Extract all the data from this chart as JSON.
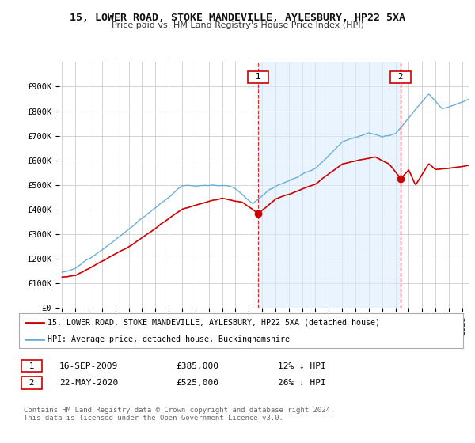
{
  "title": "15, LOWER ROAD, STOKE MANDEVILLE, AYLESBURY, HP22 5XA",
  "subtitle": "Price paid vs. HM Land Registry's House Price Index (HPI)",
  "background_color": "#ffffff",
  "plot_background": "#ffffff",
  "grid_color": "#cccccc",
  "hpi_color": "#6aafd6",
  "hpi_fill_color": "#ddeeff",
  "price_color": "#cc0000",
  "dashed_color": "#cc0000",
  "annotation1_date": "16-SEP-2009",
  "annotation1_price": "£385,000",
  "annotation1_hpi": "12% ↓ HPI",
  "annotation1_year": 2009.72,
  "annotation1_value": 385000,
  "annotation2_date": "22-MAY-2020",
  "annotation2_price": "£525,000",
  "annotation2_hpi": "26% ↓ HPI",
  "annotation2_year": 2020.38,
  "annotation2_value": 525000,
  "ylim_min": 0,
  "ylim_max": 1000000,
  "xlim_min": 1994.8,
  "xlim_max": 2025.5,
  "legend_line1": "15, LOWER ROAD, STOKE MANDEVILLE, AYLESBURY, HP22 5XA (detached house)",
  "legend_line2": "HPI: Average price, detached house, Buckinghamshire",
  "footer": "Contains HM Land Registry data © Crown copyright and database right 2024.\nThis data is licensed under the Open Government Licence v3.0.",
  "yticks": [
    0,
    100000,
    200000,
    300000,
    400000,
    500000,
    600000,
    700000,
    800000,
    900000
  ],
  "ytick_labels": [
    "£0",
    "£100K",
    "£200K",
    "£300K",
    "£400K",
    "£500K",
    "£600K",
    "£700K",
    "£800K",
    "£900K"
  ],
  "title_fontsize": 9.5,
  "subtitle_fontsize": 8,
  "tick_fontsize": 7.5
}
